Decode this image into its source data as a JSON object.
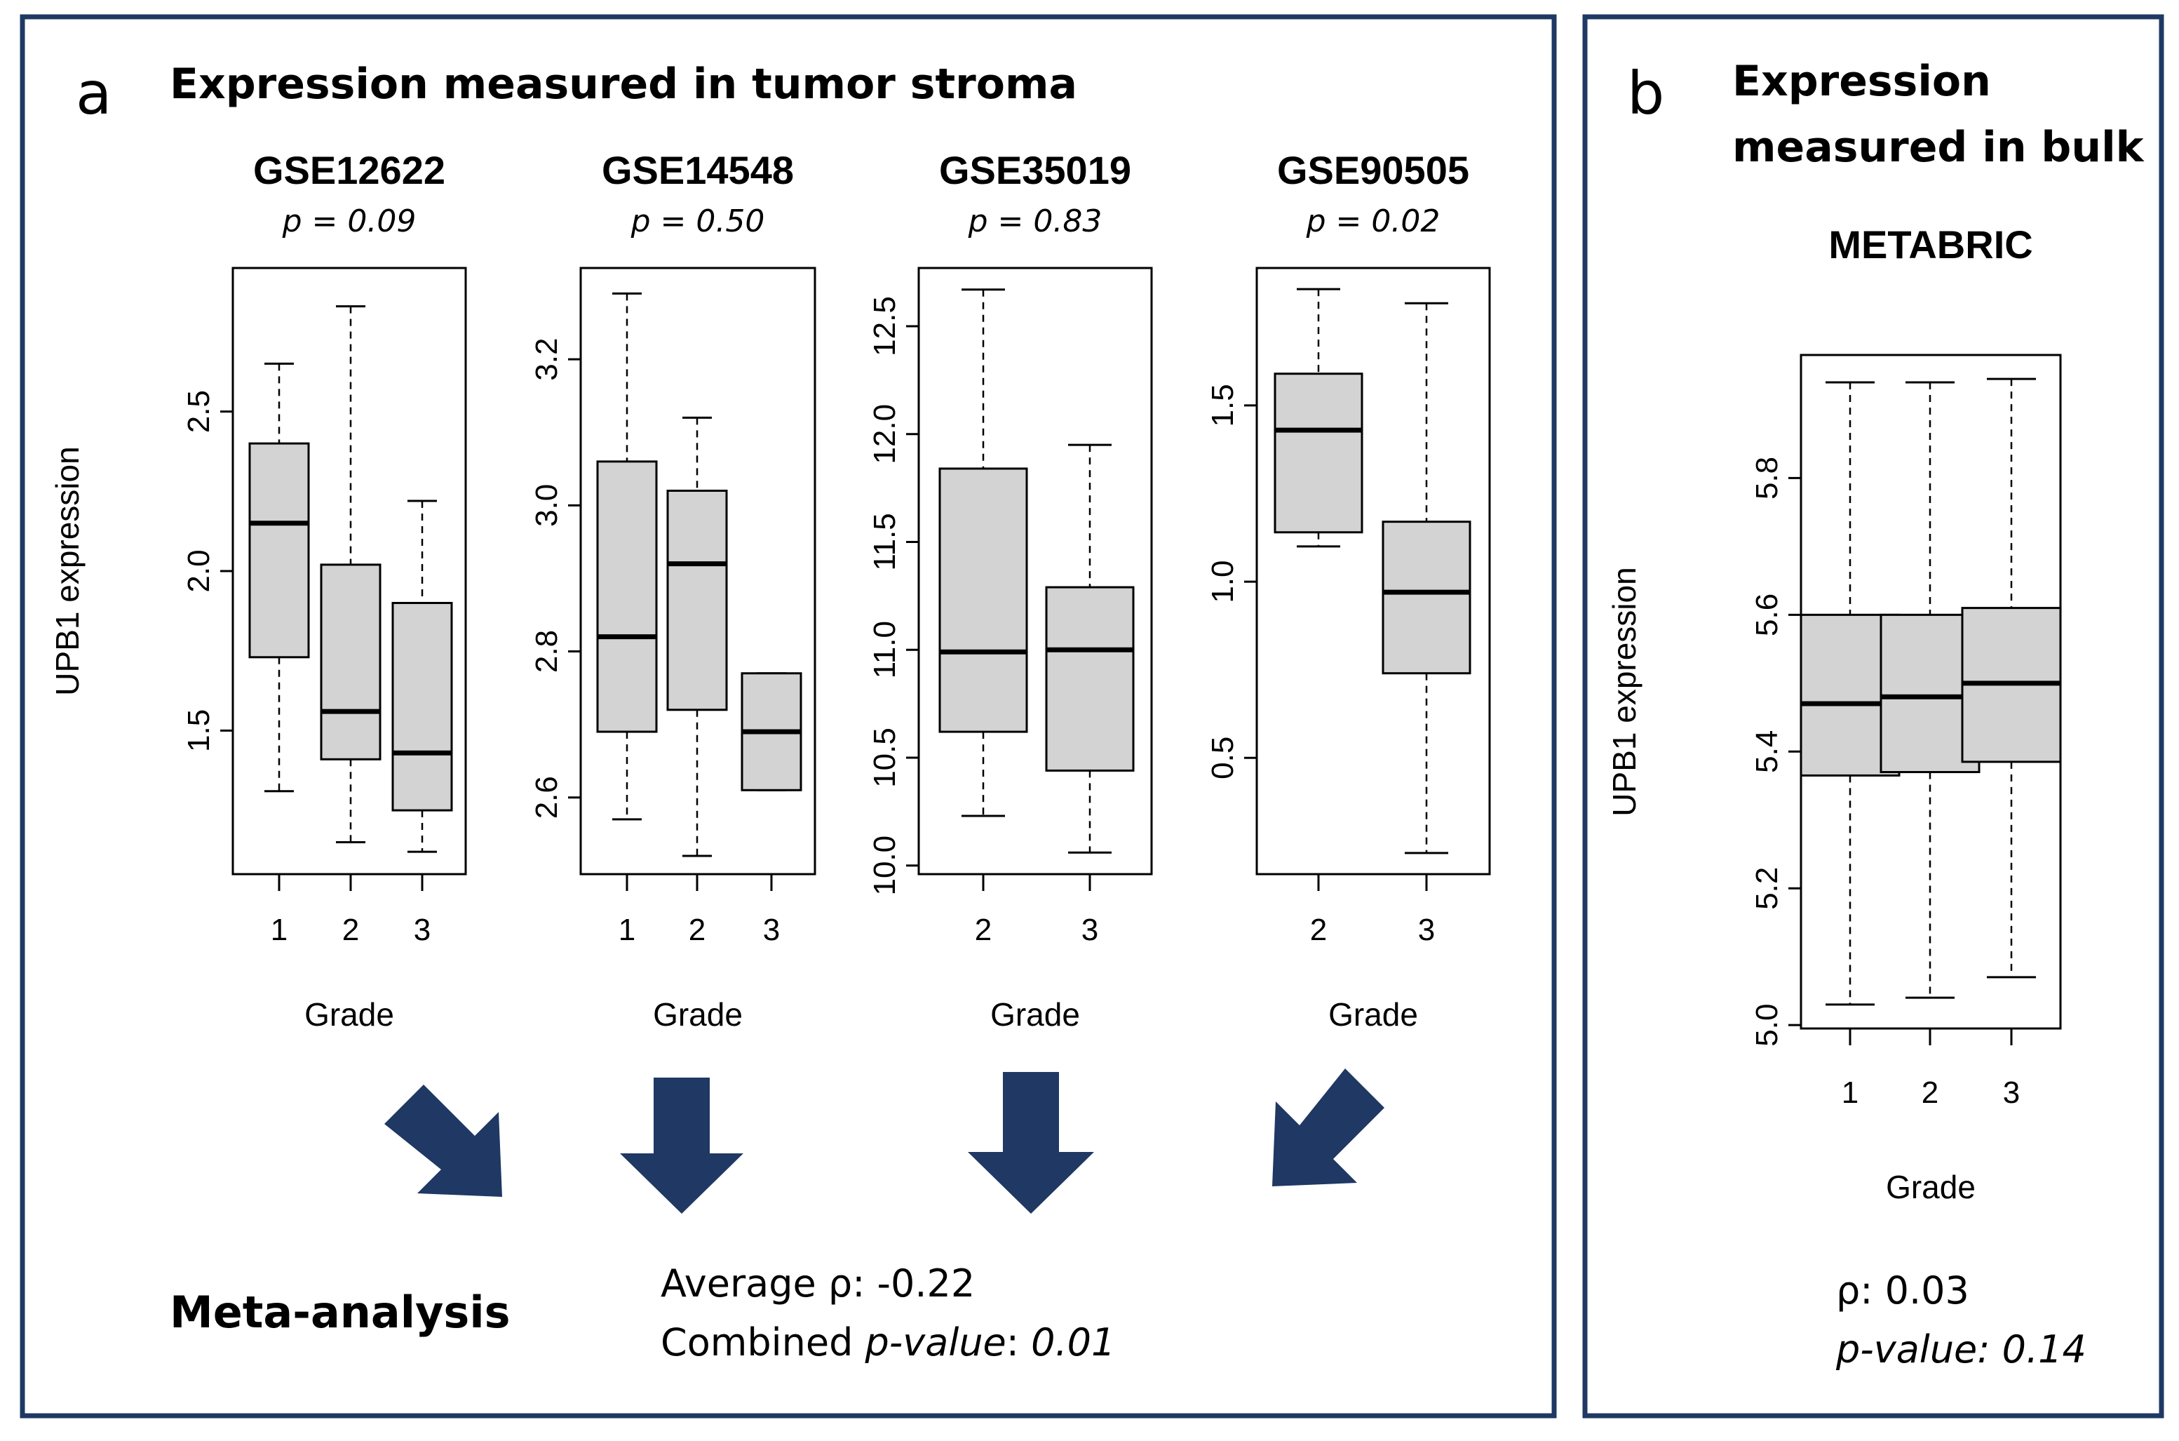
{
  "panel_a": {
    "letter": "a",
    "title": "Expression measured in tumor stroma",
    "meta_title": "Meta-analysis",
    "avg_rho_label": "Average ρ: -0.22",
    "combined_prefix": "Combined ",
    "combined_ital": "p-value",
    "combined_sep": ": ",
    "combined_value": "0.01"
  },
  "panel_b": {
    "letter": "b",
    "title_line1": "Expression",
    "title_line2": "measured in bulk",
    "rho_label": "ρ: 0.03",
    "pvalue_label": "p-value: 0.14"
  },
  "colors": {
    "frame": "#1f3864",
    "arrow": "#1f3864",
    "box_fill": "#d3d3d3"
  },
  "chart_data": [
    {
      "type": "boxplot",
      "title": "GSE12622",
      "subtitle": "p = 0.09",
      "xlabel": "Grade",
      "ylabel": "UPB1 expression",
      "categories": [
        "1",
        "2",
        "3"
      ],
      "ylim": [
        1.05,
        2.95
      ],
      "yticks": [
        1.5,
        2.0,
        2.5
      ],
      "ytick_labels": [
        "1.5",
        "2.0",
        "2.5"
      ],
      "boxes": [
        {
          "min": 1.31,
          "q1": 1.73,
          "median": 2.15,
          "q3": 2.4,
          "max": 2.65
        },
        {
          "min": 1.15,
          "q1": 1.41,
          "median": 1.56,
          "q3": 2.02,
          "max": 2.83
        },
        {
          "min": 1.12,
          "q1": 1.25,
          "median": 1.43,
          "q3": 1.9,
          "max": 2.22
        }
      ]
    },
    {
      "type": "boxplot",
      "title": "GSE14548",
      "subtitle": "p = 0.50",
      "xlabel": "Grade",
      "ylabel": "",
      "categories": [
        "1",
        "2",
        "3"
      ],
      "ylim": [
        2.495,
        3.325
      ],
      "yticks": [
        2.6,
        2.8,
        3.0,
        3.2
      ],
      "ytick_labels": [
        "2.6",
        "2.8",
        "3.0",
        "3.2"
      ],
      "boxes": [
        {
          "min": 2.57,
          "q1": 2.69,
          "median": 2.82,
          "q3": 3.06,
          "max": 3.29
        },
        {
          "min": 2.52,
          "q1": 2.72,
          "median": 2.92,
          "q3": 3.02,
          "max": 3.12
        },
        {
          "min": 2.61,
          "q1": 2.61,
          "median": 2.69,
          "q3": 2.77,
          "max": 2.77
        }
      ]
    },
    {
      "type": "boxplot",
      "title": "GSE35019",
      "subtitle": "p = 0.83",
      "xlabel": "Grade",
      "ylabel": "",
      "categories": [
        "2",
        "3"
      ],
      "ylim": [
        9.96,
        12.77
      ],
      "yticks": [
        10.0,
        10.5,
        11.0,
        11.5,
        12.0,
        12.5
      ],
      "ytick_labels": [
        "10.0",
        "10.5",
        "11.0",
        "11.5",
        "12.0",
        "12.5"
      ],
      "boxes": [
        {
          "min": 10.23,
          "q1": 10.62,
          "median": 10.99,
          "q3": 11.84,
          "max": 12.67
        },
        {
          "min": 10.06,
          "q1": 10.44,
          "median": 11.0,
          "q3": 11.29,
          "max": 11.95
        }
      ]
    },
    {
      "type": "boxplot",
      "title": "GSE90505",
      "subtitle": "p = 0.02",
      "xlabel": "Grade",
      "ylabel": "",
      "categories": [
        "2",
        "3"
      ],
      "ylim": [
        0.17,
        1.89
      ],
      "yticks": [
        0.5,
        1.0,
        1.5
      ],
      "ytick_labels": [
        "0.5",
        "1.0",
        "1.5"
      ],
      "boxes": [
        {
          "min": 1.1,
          "q1": 1.14,
          "median": 1.43,
          "q3": 1.59,
          "max": 1.83
        },
        {
          "min": 0.23,
          "q1": 0.74,
          "median": 0.97,
          "q3": 1.17,
          "max": 1.79
        }
      ]
    },
    {
      "type": "boxplot",
      "title": "METABRIC",
      "subtitle": "",
      "xlabel": "Grade",
      "ylabel": "UPB1 expression",
      "categories": [
        "1",
        "2",
        "3"
      ],
      "ylim": [
        4.995,
        5.98
      ],
      "yticks": [
        5.0,
        5.2,
        5.4,
        5.6,
        5.8
      ],
      "ytick_labels": [
        "5.0",
        "5.2",
        "5.4",
        "5.6",
        "5.8"
      ],
      "boxes": [
        {
          "min": 5.03,
          "q1": 5.365,
          "median": 5.47,
          "q3": 5.6,
          "max": 5.94
        },
        {
          "min": 5.04,
          "q1": 5.37,
          "median": 5.48,
          "q3": 5.6,
          "max": 5.94
        },
        {
          "min": 5.07,
          "q1": 5.385,
          "median": 5.5,
          "q3": 5.61,
          "max": 5.945
        }
      ]
    }
  ]
}
